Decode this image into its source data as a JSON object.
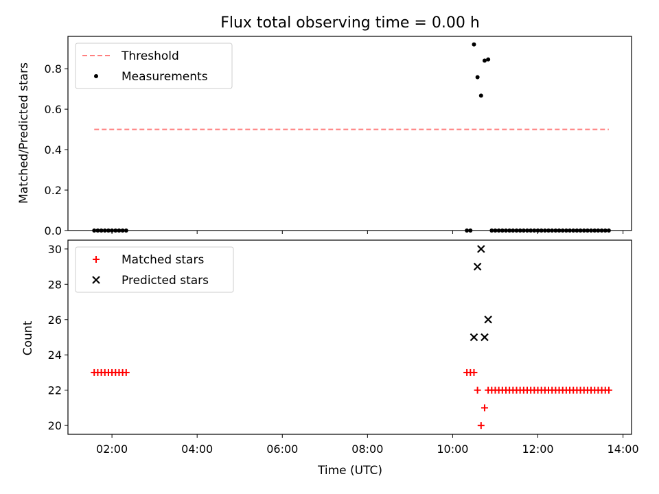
{
  "chart_data": [
    {
      "type": "scatter",
      "title": "Flux total observing time = 0.00 h",
      "xlabel": "",
      "ylabel": "Matched/Predicted stars",
      "xlim": [
        "00:58",
        "14:12"
      ],
      "ylim": [
        0,
        0.96
      ],
      "yticks": [
        0.0,
        0.2,
        0.4,
        0.6,
        0.8
      ],
      "ytick_labels": [
        "0.0",
        "0.2",
        "0.4",
        "0.6",
        "0.8"
      ],
      "legend_position": "upper-left",
      "series": [
        {
          "name": "Threshold",
          "kind": "line",
          "style": "dashed",
          "color": "#ff7f7f",
          "points": [
            [
              "01:35",
              0.5
            ],
            [
              "13:40",
              0.5
            ]
          ]
        },
        {
          "name": "Measurements",
          "kind": "scatter",
          "marker": "dot",
          "color": "#000000",
          "points": [
            [
              "01:35",
              0
            ],
            [
              "01:40",
              0
            ],
            [
              "01:45",
              0
            ],
            [
              "01:50",
              0
            ],
            [
              "01:55",
              0
            ],
            [
              "02:00",
              0
            ],
            [
              "02:05",
              0
            ],
            [
              "02:10",
              0
            ],
            [
              "02:15",
              0
            ],
            [
              "02:20",
              0
            ],
            [
              "10:20",
              0
            ],
            [
              "10:25",
              0
            ],
            [
              "10:30",
              0.92
            ],
            [
              "10:35",
              0.758
            ],
            [
              "10:40",
              0.667
            ],
            [
              "10:45",
              0.84
            ],
            [
              "10:50",
              0.846
            ],
            [
              "10:55",
              0
            ],
            [
              "11:00",
              0
            ],
            [
              "11:05",
              0
            ],
            [
              "11:10",
              0
            ],
            [
              "11:15",
              0
            ],
            [
              "11:20",
              0
            ],
            [
              "11:25",
              0
            ],
            [
              "11:30",
              0
            ],
            [
              "11:35",
              0
            ],
            [
              "11:40",
              0
            ],
            [
              "11:45",
              0
            ],
            [
              "11:50",
              0
            ],
            [
              "11:55",
              0
            ],
            [
              "12:00",
              0
            ],
            [
              "12:05",
              0
            ],
            [
              "12:10",
              0
            ],
            [
              "12:15",
              0
            ],
            [
              "12:20",
              0
            ],
            [
              "12:25",
              0
            ],
            [
              "12:30",
              0
            ],
            [
              "12:35",
              0
            ],
            [
              "12:40",
              0
            ],
            [
              "12:45",
              0
            ],
            [
              "12:50",
              0
            ],
            [
              "12:55",
              0
            ],
            [
              "13:00",
              0
            ],
            [
              "13:05",
              0
            ],
            [
              "13:10",
              0
            ],
            [
              "13:15",
              0
            ],
            [
              "13:20",
              0
            ],
            [
              "13:25",
              0
            ],
            [
              "13:30",
              0
            ],
            [
              "13:35",
              0
            ],
            [
              "13:40",
              0
            ]
          ]
        }
      ]
    },
    {
      "type": "scatter",
      "title": "",
      "xlabel": "Time (UTC)",
      "ylabel": "Count",
      "xlim": [
        "00:58",
        "14:12"
      ],
      "ylim": [
        19.5,
        30.5
      ],
      "yticks": [
        20,
        22,
        24,
        26,
        28,
        30
      ],
      "ytick_labels": [
        "20",
        "22",
        "24",
        "26",
        "28",
        "30"
      ],
      "xticks": [
        "02:00",
        "04:00",
        "06:00",
        "08:00",
        "10:00",
        "12:00",
        "14:00"
      ],
      "xtick_labels": [
        "02:00",
        "04:00",
        "06:00",
        "08:00",
        "10:00",
        "12:00",
        "14:00"
      ],
      "legend_position": "upper-left",
      "series": [
        {
          "name": "Matched stars",
          "kind": "scatter",
          "marker": "plus",
          "color": "#ff0000",
          "points": [
            [
              "01:35",
              23
            ],
            [
              "01:40",
              23
            ],
            [
              "01:45",
              23
            ],
            [
              "01:50",
              23
            ],
            [
              "01:55",
              23
            ],
            [
              "02:00",
              23
            ],
            [
              "02:05",
              23
            ],
            [
              "02:10",
              23
            ],
            [
              "02:15",
              23
            ],
            [
              "02:20",
              23
            ],
            [
              "10:20",
              23
            ],
            [
              "10:25",
              23
            ],
            [
              "10:30",
              23
            ],
            [
              "10:35",
              22
            ],
            [
              "10:40",
              20
            ],
            [
              "10:45",
              21
            ],
            [
              "10:50",
              22
            ],
            [
              "10:55",
              22
            ],
            [
              "11:00",
              22
            ],
            [
              "11:05",
              22
            ],
            [
              "11:10",
              22
            ],
            [
              "11:15",
              22
            ],
            [
              "11:20",
              22
            ],
            [
              "11:25",
              22
            ],
            [
              "11:30",
              22
            ],
            [
              "11:35",
              22
            ],
            [
              "11:40",
              22
            ],
            [
              "11:45",
              22
            ],
            [
              "11:50",
              22
            ],
            [
              "11:55",
              22
            ],
            [
              "12:00",
              22
            ],
            [
              "12:05",
              22
            ],
            [
              "12:10",
              22
            ],
            [
              "12:15",
              22
            ],
            [
              "12:20",
              22
            ],
            [
              "12:25",
              22
            ],
            [
              "12:30",
              22
            ],
            [
              "12:35",
              22
            ],
            [
              "12:40",
              22
            ],
            [
              "12:45",
              22
            ],
            [
              "12:50",
              22
            ],
            [
              "12:55",
              22
            ],
            [
              "13:00",
              22
            ],
            [
              "13:05",
              22
            ],
            [
              "13:10",
              22
            ],
            [
              "13:15",
              22
            ],
            [
              "13:20",
              22
            ],
            [
              "13:25",
              22
            ],
            [
              "13:30",
              22
            ],
            [
              "13:35",
              22
            ],
            [
              "13:40",
              22
            ]
          ]
        },
        {
          "name": "Predicted stars",
          "kind": "scatter",
          "marker": "x",
          "color": "#000000",
          "points": [
            [
              "10:30",
              25
            ],
            [
              "10:35",
              29
            ],
            [
              "10:40",
              30
            ],
            [
              "10:45",
              25
            ],
            [
              "10:50",
              26
            ]
          ]
        }
      ]
    }
  ]
}
